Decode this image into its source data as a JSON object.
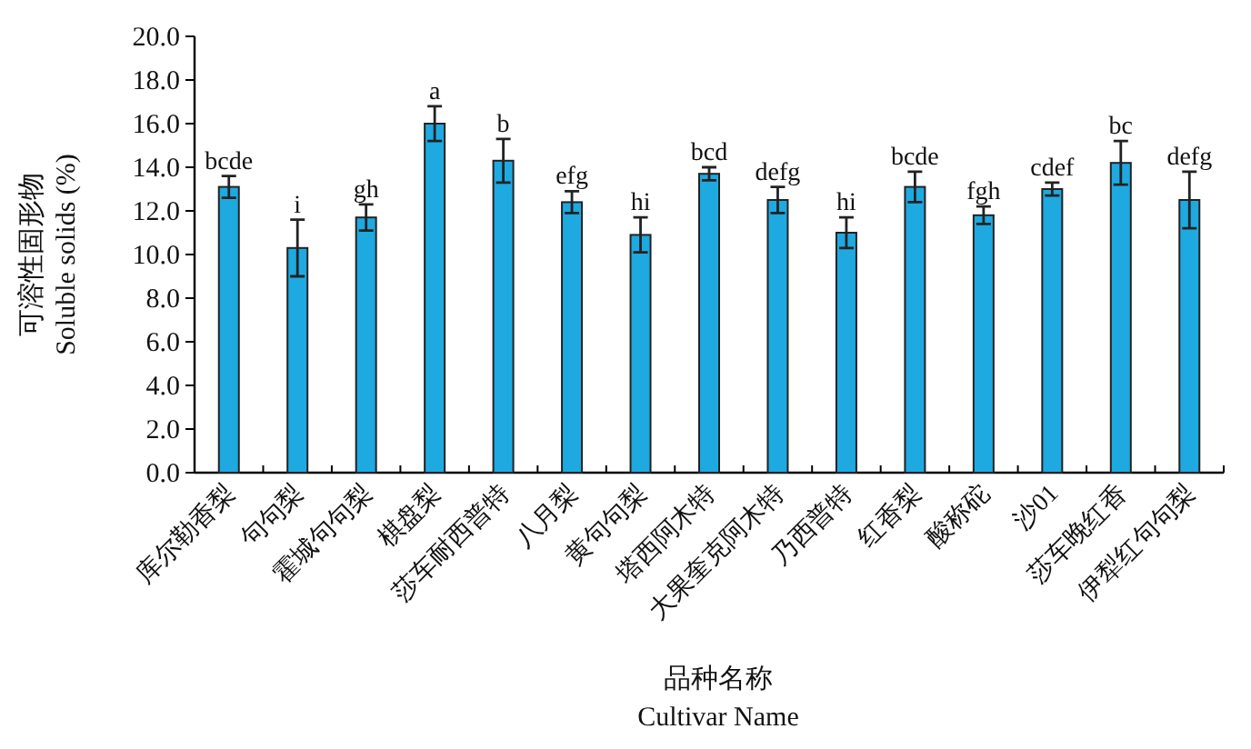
{
  "chart_data": {
    "type": "bar",
    "xlabel": "品种名称\nCultivar Name",
    "ylabel": "可溶性固形物\nSoluble solids (%)",
    "categories": [
      "库尔勒香梨",
      "句句梨",
      "霍城句句梨",
      "棋盘梨",
      "莎车耐西普特",
      "八月梨",
      "黄句句梨",
      "塔西阿木特",
      "大果奎克阿木特",
      "乃西普特",
      "红香梨",
      "酸称砣",
      "沙01",
      "莎车晚红香",
      "伊犁红句句梨"
    ],
    "values": [
      13.1,
      10.3,
      11.7,
      16.0,
      14.3,
      12.4,
      10.9,
      13.7,
      12.5,
      11.0,
      13.1,
      11.8,
      13.0,
      14.2,
      12.5
    ],
    "errors": [
      0.5,
      1.3,
      0.6,
      0.8,
      1.0,
      0.5,
      0.8,
      0.3,
      0.6,
      0.7,
      0.7,
      0.4,
      0.3,
      1.0,
      1.3
    ],
    "color": "#1ea9e1",
    "ylim": [
      0,
      20
    ],
    "yticks": [
      {
        "value": 0,
        "label": "0.0"
      },
      {
        "value": 2,
        "label": "2.0"
      },
      {
        "value": 4,
        "label": "4.0"
      },
      {
        "value": 6,
        "label": "6.0"
      },
      {
        "value": 8,
        "label": "8.0"
      },
      {
        "value": 10,
        "label": "10.0"
      },
      {
        "value": 12,
        "label": "12.0"
      },
      {
        "value": 14,
        "label": "14.0"
      },
      {
        "value": 16,
        "label": "16.0"
      },
      {
        "value": 18,
        "label": "18.0"
      },
      {
        "value": 20,
        "label": "20.0"
      }
    ],
    "annotations": [
      {
        "text": "bcde",
        "x": "库尔勒香梨",
        "y": 13.6
      },
      {
        "text": "i",
        "x": "句句梨",
        "y": 11.6
      },
      {
        "text": "gh",
        "x": "霍城句句梨",
        "y": 12.3
      },
      {
        "text": "a",
        "x": "棋盘梨",
        "y": 16.8
      },
      {
        "text": "b",
        "x": "莎车耐西普特",
        "y": 15.3
      },
      {
        "text": "efg",
        "x": "八月梨",
        "y": 12.9
      },
      {
        "text": "hi",
        "x": "黄句句梨",
        "y": 11.7
      },
      {
        "text": "bcd",
        "x": "塔西阿木特",
        "y": 14.0
      },
      {
        "text": "defg",
        "x": "大果奎克阿木特",
        "y": 13.1
      },
      {
        "text": "hi",
        "x": "乃西普特",
        "y": 11.7
      },
      {
        "text": "bcde",
        "x": "红香梨",
        "y": 13.8
      },
      {
        "text": "fgh",
        "x": "酸称砣",
        "y": 12.2
      },
      {
        "text": "cdef",
        "x": "沙01",
        "y": 13.3
      },
      {
        "text": "bc",
        "x": "莎车晚红香",
        "y": 15.2
      },
      {
        "text": "defg",
        "x": "伊犁红句句梨",
        "y": 13.8
      }
    ],
    "grid": false
  }
}
